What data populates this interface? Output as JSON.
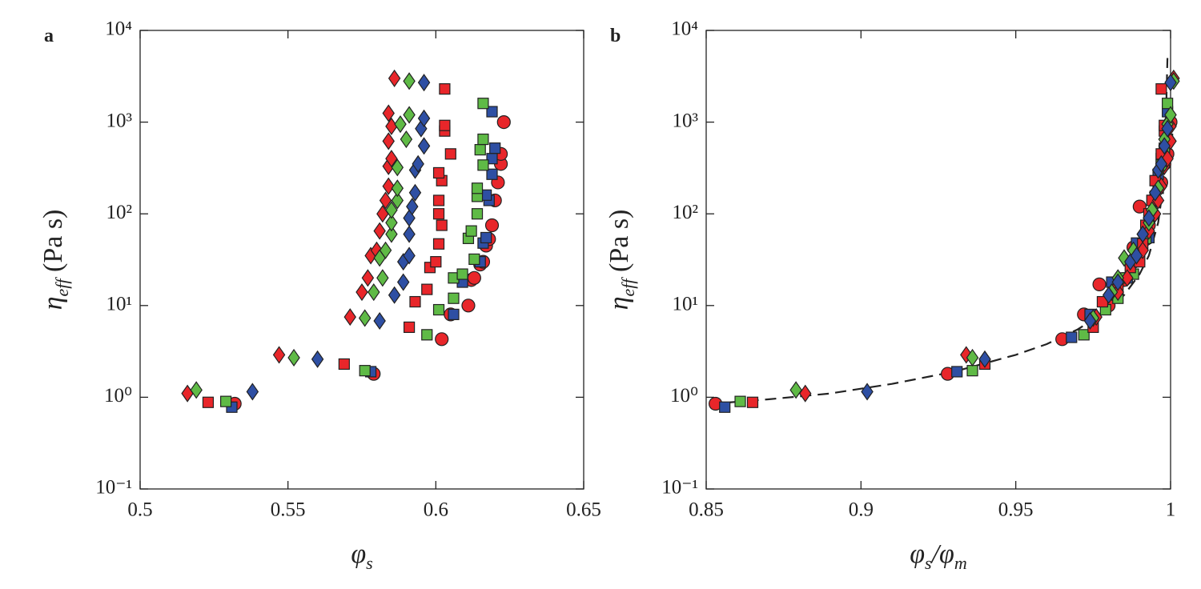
{
  "chart_data": [
    {
      "type": "scatter",
      "panel": "a",
      "log_y": true,
      "xlabel": [
        {
          "text": "φ"
        },
        {
          "text": "s",
          "sub": true
        }
      ],
      "ylabel": [
        {
          "text": "η"
        },
        {
          "text": "eff",
          "sub": true
        },
        {
          "text": " (Pa s)"
        }
      ],
      "xlim": [
        0.5,
        0.65
      ],
      "xticks": [
        0.5,
        0.55,
        0.6,
        0.65
      ],
      "ylim": [
        0.1,
        10000
      ],
      "yticks": [
        {
          "value": 0.1,
          "label": "10⁻¹"
        },
        {
          "value": 1,
          "label": "10⁰"
        },
        {
          "value": 10,
          "label": "10¹"
        },
        {
          "value": 100,
          "label": "10²"
        },
        {
          "value": 1000,
          "label": "10³"
        },
        {
          "value": 10000,
          "label": "10⁴"
        }
      ],
      "series": [
        {
          "marker": "circle",
          "color": "#e8262a",
          "x": [
            0.532,
            0.579,
            0.602,
            0.605,
            0.611,
            0.612,
            0.613,
            0.615,
            0.616,
            0.617,
            0.618,
            0.619,
            0.62,
            0.621,
            0.622,
            0.622,
            0.623
          ],
          "values": [
            0.85,
            1.8,
            4.3,
            8,
            10,
            19,
            20,
            28,
            30,
            45,
            53,
            75,
            140,
            220,
            350,
            450,
            1000
          ]
        },
        {
          "marker": "square",
          "color": "#2e4fa3",
          "x": [
            0.531,
            0.578,
            0.606,
            0.609,
            0.615,
            0.616,
            0.617,
            0.618,
            0.617,
            0.619,
            0.619,
            0.62,
            0.619
          ],
          "values": [
            0.78,
            1.9,
            8,
            18,
            30,
            48,
            55,
            140,
            160,
            270,
            400,
            520,
            1300
          ]
        },
        {
          "marker": "square",
          "color": "#5fba46",
          "x": [
            0.529,
            0.576,
            0.597,
            0.601,
            0.606,
            0.606,
            0.609,
            0.611,
            0.613,
            0.612,
            0.614,
            0.614,
            0.614,
            0.616,
            0.615,
            0.616,
            0.616
          ],
          "values": [
            0.9,
            1.95,
            4.8,
            9,
            12,
            20,
            22,
            54,
            32,
            65,
            100,
            155,
            190,
            340,
            500,
            650,
            1600
          ]
        },
        {
          "marker": "square",
          "color": "#e8262a",
          "x": [
            0.523,
            0.569,
            0.591,
            0.593,
            0.597,
            0.598,
            0.6,
            0.601,
            0.602,
            0.601,
            0.601,
            0.602,
            0.601,
            0.605,
            0.603,
            0.603,
            0.603
          ],
          "values": [
            0.88,
            2.3,
            5.8,
            11,
            15,
            26,
            30,
            47,
            75,
            100,
            140,
            230,
            280,
            450,
            800,
            920,
            2300
          ]
        },
        {
          "marker": "diamond",
          "color": "#e8262a",
          "x": [
            0.516,
            0.547,
            0.571,
            0.575,
            0.577,
            0.578,
            0.58,
            0.581,
            0.582,
            0.583,
            0.584,
            0.584,
            0.585,
            0.584,
            0.585,
            0.584,
            0.586
          ],
          "values": [
            1.1,
            2.9,
            7.5,
            14,
            20,
            35,
            40,
            65,
            100,
            140,
            200,
            330,
            400,
            620,
            900,
            1250,
            3000
          ]
        },
        {
          "marker": "diamond",
          "color": "#5fba46",
          "x": [
            0.519,
            0.552,
            0.576,
            0.579,
            0.582,
            0.581,
            0.583,
            0.585,
            0.585,
            0.585,
            0.587,
            0.587,
            0.587,
            0.59,
            0.588,
            0.591,
            0.591
          ],
          "values": [
            1.2,
            2.7,
            7.3,
            14,
            20,
            33,
            40,
            60,
            80,
            110,
            140,
            190,
            320,
            650,
            950,
            1200,
            2800
          ]
        },
        {
          "marker": "diamond",
          "color": "#2e4fa3",
          "x": [
            0.538,
            0.56,
            0.581,
            0.586,
            0.589,
            0.589,
            0.591,
            0.591,
            0.591,
            0.592,
            0.593,
            0.593,
            0.594,
            0.596,
            0.595,
            0.596,
            0.596
          ],
          "values": [
            1.15,
            2.6,
            6.8,
            13,
            18,
            30,
            35,
            60,
            90,
            120,
            170,
            300,
            350,
            550,
            850,
            1100,
            2700
          ]
        }
      ]
    },
    {
      "type": "scatter",
      "panel": "b",
      "log_y": true,
      "xlabel": [
        {
          "text": "φ"
        },
        {
          "text": "s",
          "sub": true
        },
        {
          "text": "/φ"
        },
        {
          "text": "m",
          "sub": true
        }
      ],
      "ylabel": [
        {
          "text": "η"
        },
        {
          "text": "eff",
          "sub": true
        },
        {
          "text": " (Pa s)"
        }
      ],
      "xlim": [
        0.85,
        1.0
      ],
      "xticks": [
        0.85,
        0.9,
        0.95,
        1
      ],
      "ylim": [
        0.1,
        10000
      ],
      "yticks": [
        {
          "value": 0.1,
          "label": "10⁻¹"
        },
        {
          "value": 1,
          "label": "10⁰"
        },
        {
          "value": 10,
          "label": "10¹"
        },
        {
          "value": 100,
          "label": "10²"
        },
        {
          "value": 1000,
          "label": "10³"
        },
        {
          "value": 10000,
          "label": "10⁴"
        }
      ],
      "fit": {
        "color": "#222",
        "x": [
          0.852,
          0.87,
          0.89,
          0.91,
          0.93,
          0.95,
          0.96,
          0.97,
          0.98,
          0.985,
          0.99,
          0.993,
          0.996,
          0.998,
          0.999
        ],
        "values": [
          0.85,
          0.95,
          1.1,
          1.4,
          1.9,
          2.9,
          3.8,
          5.5,
          9,
          13,
          22,
          35,
          80,
          250,
          5000
        ]
      },
      "series": [
        {
          "marker": "circle",
          "color": "#e8262a",
          "x": [
            0.853,
            0.928,
            0.965,
            0.972,
            0.977,
            0.98,
            0.985,
            0.988,
            0.988,
            0.99,
            0.992,
            0.993,
            0.99,
            0.995,
            0.997,
            0.998,
            0.999,
            1.0
          ],
          "values": [
            0.85,
            1.8,
            4.3,
            8,
            17,
            10,
            19,
            30,
            43,
            45,
            53,
            75,
            120,
            140,
            220,
            350,
            450,
            1000
          ]
        },
        {
          "marker": "square",
          "color": "#2e4fa3",
          "x": [
            0.856,
            0.931,
            0.968,
            0.974,
            0.981,
            0.986,
            0.988,
            0.989,
            0.993,
            0.994,
            0.996,
            0.997,
            0.998,
            0.999
          ],
          "values": [
            0.78,
            1.9,
            4.5,
            8,
            18,
            20,
            30,
            48,
            55,
            140,
            270,
            400,
            520,
            1300
          ]
        },
        {
          "marker": "square",
          "color": "#5fba46",
          "x": [
            0.861,
            0.936,
            0.972,
            0.979,
            0.983,
            0.985,
            0.988,
            0.99,
            0.992,
            0.994,
            0.995,
            0.996,
            0.997,
            0.998,
            0.999,
            0.999
          ],
          "values": [
            0.9,
            1.95,
            4.8,
            9,
            12,
            20,
            22,
            32,
            54,
            100,
            155,
            190,
            340,
            500,
            650,
            1600
          ]
        },
        {
          "marker": "square",
          "color": "#e8262a",
          "x": [
            0.865,
            0.94,
            0.975,
            0.978,
            0.983,
            0.987,
            0.99,
            0.991,
            0.992,
            0.993,
            0.994,
            0.995,
            0.997,
            0.998,
            0.998,
            0.997
          ],
          "values": [
            0.88,
            2.3,
            5.8,
            11,
            15,
            26,
            30,
            47,
            75,
            100,
            140,
            230,
            450,
            800,
            920,
            2300
          ]
        },
        {
          "marker": "diamond",
          "color": "#e8262a",
          "x": [
            0.882,
            0.934,
            0.976,
            0.983,
            0.986,
            0.989,
            0.991,
            0.993,
            0.995,
            0.996,
            0.997,
            0.998,
            0.999,
            1.0,
            1.0,
            1.001
          ],
          "values": [
            1.1,
            2.9,
            7.5,
            14,
            20,
            35,
            40,
            65,
            100,
            140,
            200,
            330,
            400,
            620,
            900,
            3000
          ]
        },
        {
          "marker": "diamond",
          "color": "#5fba46",
          "x": [
            0.879,
            0.936,
            0.975,
            0.981,
            0.983,
            0.985,
            0.988,
            0.991,
            0.993,
            0.994,
            0.996,
            0.997,
            0.998,
            0.999,
            1.0,
            1.001
          ],
          "values": [
            1.2,
            2.7,
            7.3,
            14,
            20,
            33,
            40,
            60,
            80,
            110,
            190,
            320,
            650,
            950,
            1200,
            2800
          ]
        },
        {
          "marker": "diamond",
          "color": "#2e4fa3",
          "x": [
            0.902,
            0.94,
            0.974,
            0.98,
            0.983,
            0.987,
            0.989,
            0.991,
            0.993,
            0.995,
            0.996,
            0.997,
            0.998,
            0.999,
            1.0
          ],
          "values": [
            1.15,
            2.6,
            6.8,
            13,
            18,
            30,
            35,
            60,
            90,
            170,
            300,
            350,
            550,
            850,
            2700
          ]
        }
      ]
    }
  ]
}
